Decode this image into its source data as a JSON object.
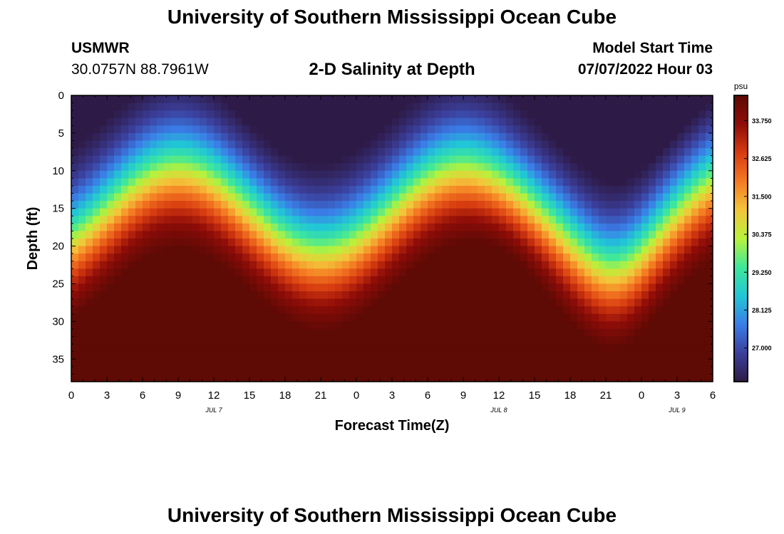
{
  "header": {
    "title": "University of Southern Mississippi Ocean Cube",
    "station": "USMWR",
    "coordinates": "30.0757N  88.7961W",
    "product": "2-D Salinity at Depth",
    "model_start_label": "Model Start Time",
    "model_start_value": "07/07/2022 Hour 03"
  },
  "footer": {
    "title": "University of Southern Mississippi Ocean Cube"
  },
  "chart_data": {
    "type": "heatmap",
    "title": "2-D Salinity at Depth",
    "xlabel": "Forecast Time(Z)",
    "ylabel": "Depth (ft)",
    "x_tick_labels": [
      "0",
      "3",
      "6",
      "9",
      "12",
      "15",
      "18",
      "21",
      "0",
      "3",
      "6",
      "9",
      "12",
      "15",
      "18",
      "21",
      "0",
      "3",
      "6"
    ],
    "date_labels": [
      {
        "label": "JUL 7",
        "at_hour": 12
      },
      {
        "label": "JUL 8",
        "at_hour": 36
      },
      {
        "label": "JUL 9",
        "at_hour": 51
      }
    ],
    "xlim_hours": [
      0,
      54
    ],
    "y_ticks": [
      0,
      5,
      10,
      15,
      20,
      25,
      30,
      35
    ],
    "ylim": [
      0,
      38
    ],
    "y_inverted": true,
    "colorbar": {
      "unit": "psu",
      "ticks": [
        "33.750",
        "32.625",
        "31.500",
        "30.375",
        "29.250",
        "28.125",
        "27.000"
      ],
      "range": [
        26.0,
        34.5
      ],
      "colors": [
        "#2e1a47",
        "#3b3f9c",
        "#3a7ee8",
        "#21c7d6",
        "#3fe89a",
        "#b8f23a",
        "#f4c53a",
        "#f57a22",
        "#d73b10",
        "#8f0c08",
        "#5e0a05"
      ]
    },
    "grid": false
  }
}
